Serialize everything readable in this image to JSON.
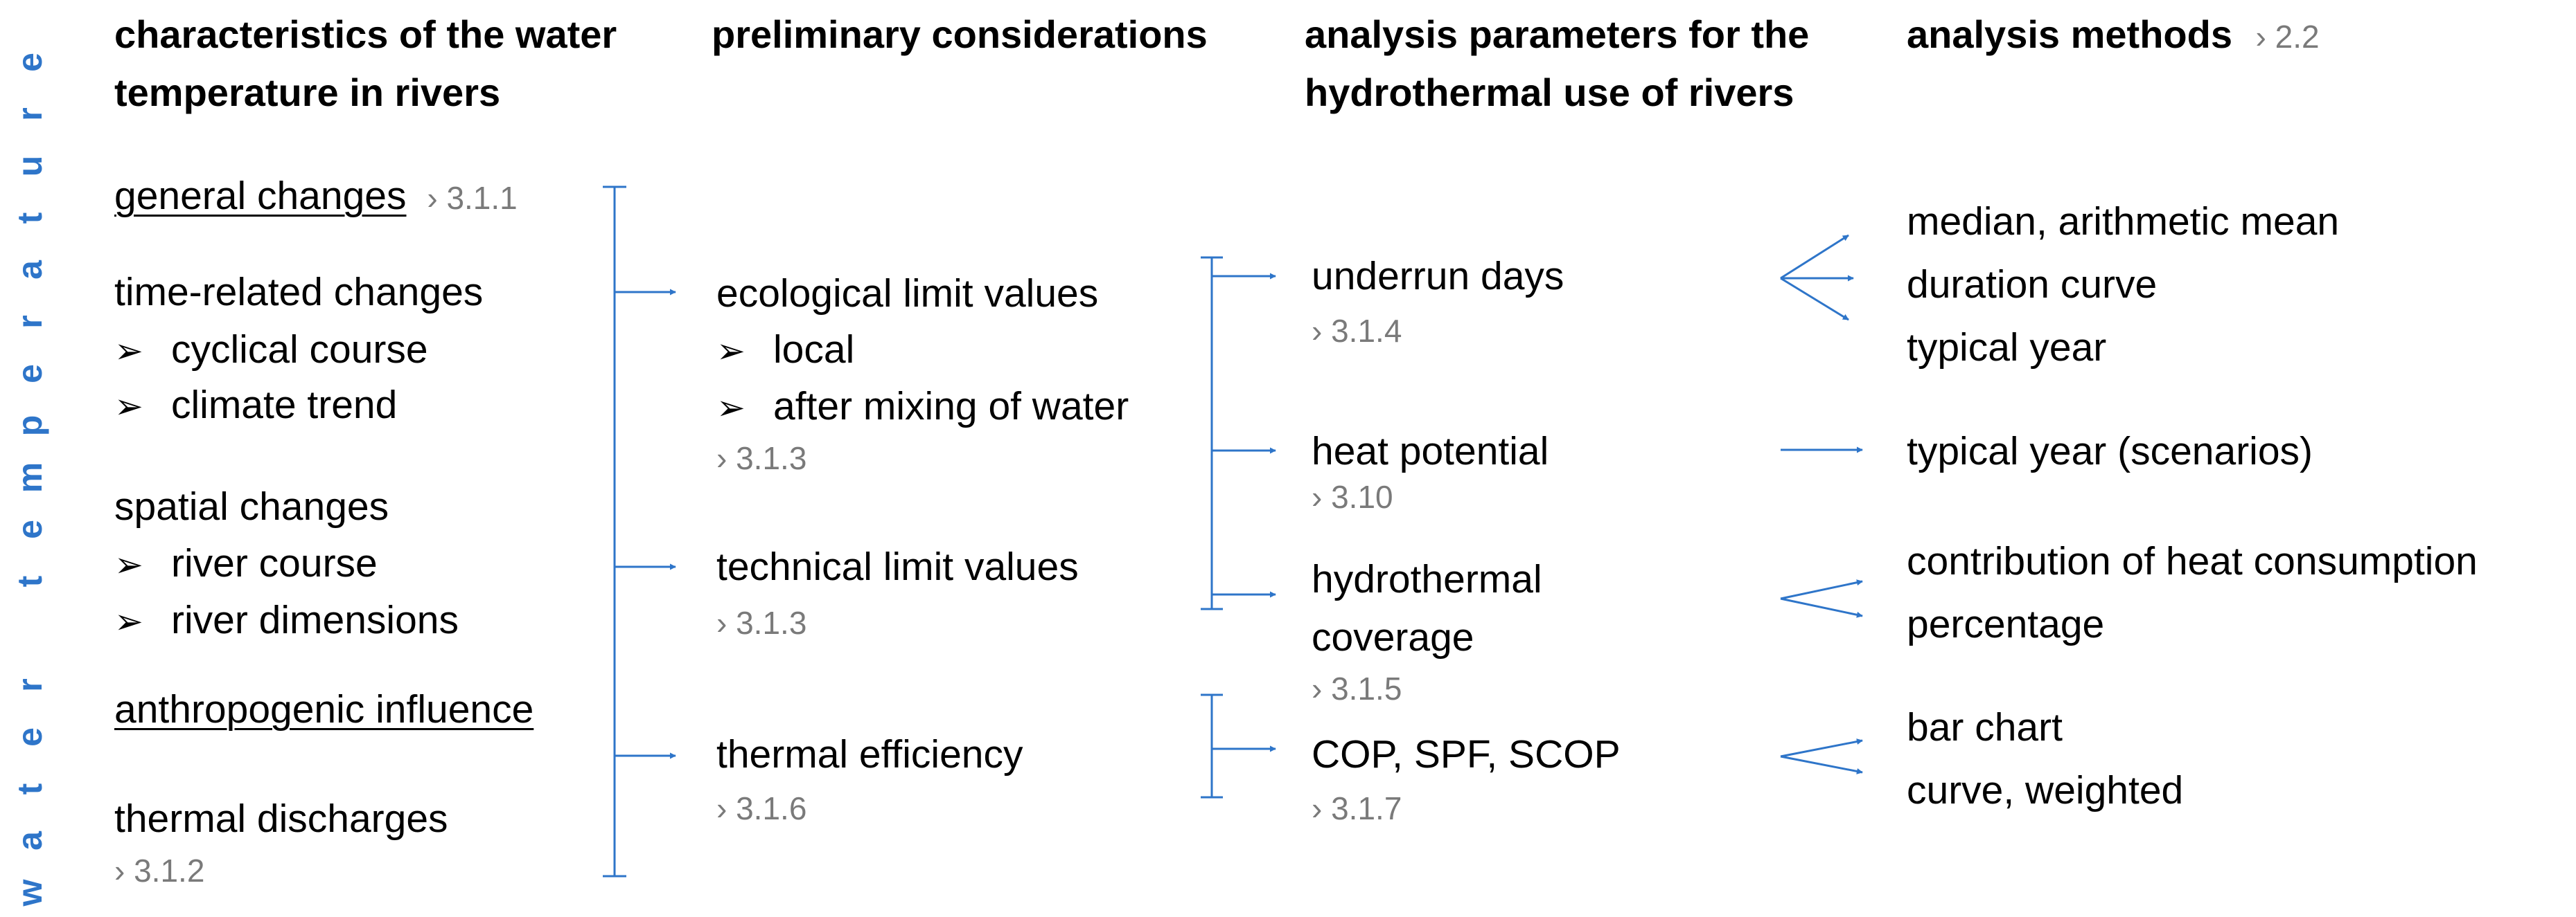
{
  "side_label": [
    "w",
    "a",
    "t",
    "e",
    "r",
    " ",
    "t",
    "e",
    "m",
    "p",
    "e",
    "r",
    "a",
    "t",
    "u",
    "r",
    "e"
  ],
  "headers": {
    "col1": [
      "characteristics of the water",
      "temperature in rivers"
    ],
    "col2": "preliminary considerations",
    "col3": [
      "analysis parameters for the",
      "hydrothermal use of rivers"
    ],
    "col4": "analysis methods",
    "col4_ref": "› 2.2"
  },
  "col1": {
    "general": "general changes",
    "general_ref": "› 3.1.1",
    "time": "time-related changes",
    "time_items": [
      "cyclical course",
      "climate trend"
    ],
    "spatial": "spatial changes",
    "spatial_items": [
      "river course",
      "river dimensions"
    ],
    "anthro": "anthropogenic influence",
    "thermal": "thermal discharges",
    "thermal_ref": "› 3.1.2"
  },
  "col2": {
    "eco": "ecological limit values",
    "eco_items": [
      "local",
      "after mixing of water"
    ],
    "eco_ref": "› 3.1.3",
    "tech": "technical limit values",
    "tech_ref": "› 3.1.3",
    "eff": "thermal efficiency",
    "eff_ref": "› 3.1.6"
  },
  "col3": {
    "underrun": "underrun days",
    "underrun_ref": "› 3.1.4",
    "heat": "heat potential",
    "heat_ref": "› 3.10",
    "hydro": [
      "hydrothermal",
      "coverage"
    ],
    "hydro_ref": "› 3.1.5",
    "cop": "COP, SPF, SCOP",
    "cop_ref": "› 3.1.7"
  },
  "col4": {
    "underrun_methods": [
      "median, arithmetic mean",
      "duration curve",
      "typical year"
    ],
    "heat_methods": [
      "typical year (scenarios)"
    ],
    "hydro_methods": [
      "contribution of heat consumption",
      "percentage"
    ],
    "cop_methods": [
      "bar chart",
      "curve, weighted"
    ]
  },
  "colors": {
    "accent": "#2e75c9",
    "ref": "#7a7a7a"
  }
}
